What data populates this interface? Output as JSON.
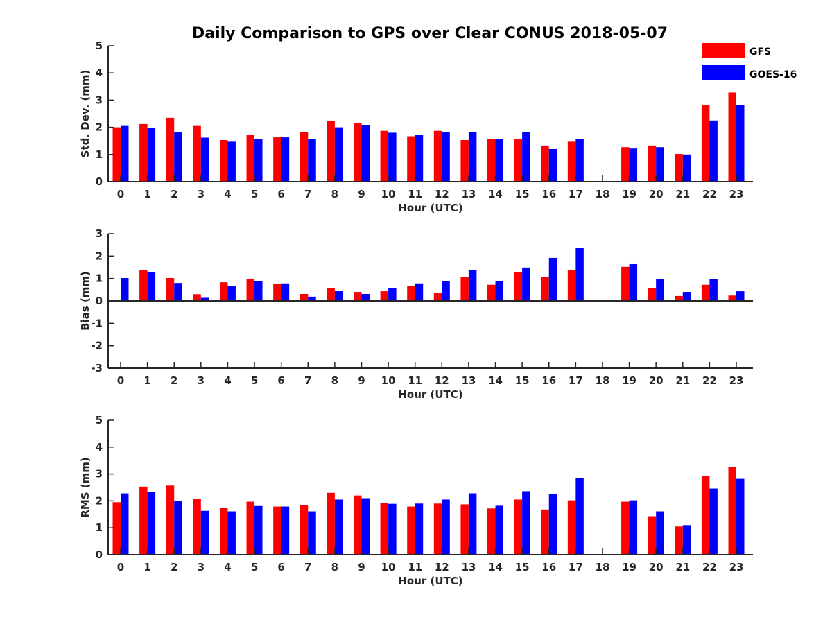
{
  "chart_data": {
    "title": "Daily Comparison to GPS over Clear CONUS 2018-05-07",
    "legend": [
      {
        "name": "GFS",
        "color": "#ff0000"
      },
      {
        "name": "GOES-16",
        "color": "#0000ff"
      }
    ],
    "legend_position": "top-right",
    "categories": [
      "0",
      "1",
      "2",
      "3",
      "4",
      "5",
      "6",
      "7",
      "8",
      "9",
      "10",
      "11",
      "12",
      "13",
      "14",
      "15",
      "16",
      "17",
      "18",
      "19",
      "20",
      "21",
      "22",
      "23"
    ],
    "panels": [
      {
        "type": "bar",
        "xlabel": "Hour (UTC)",
        "ylabel": "Std. Dev. (mm)",
        "ylim": [
          0,
          5
        ],
        "yticks": [
          "0",
          "1",
          "2",
          "3",
          "4",
          "5"
        ],
        "series": [
          {
            "name": "GFS",
            "values": [
              2.0,
              2.12,
              2.35,
              2.05,
              1.53,
              1.72,
              1.63,
              1.82,
              2.22,
              2.15,
              1.87,
              1.67,
              1.87,
              1.53,
              1.57,
              1.58,
              1.33,
              1.47,
              null,
              1.27,
              1.33,
              1.02,
              2.82,
              3.28
            ]
          },
          {
            "name": "GOES-16",
            "values": [
              2.05,
              1.97,
              1.83,
              1.62,
              1.47,
              1.58,
              1.63,
              1.58,
              2.0,
              2.07,
              1.8,
              1.72,
              1.83,
              1.82,
              1.58,
              1.83,
              1.2,
              1.58,
              null,
              1.22,
              1.27,
              1.0,
              2.25,
              2.82
            ]
          }
        ]
      },
      {
        "type": "bar",
        "xlabel": "Hour (UTC)",
        "ylabel": "Bias (mm)",
        "ylim": [
          -3,
          3
        ],
        "yticks": [
          "-3",
          "-2",
          "-1",
          "0",
          "1",
          "2",
          "3"
        ],
        "series": [
          {
            "name": "GFS",
            "values": [
              0.0,
              1.37,
              1.02,
              0.3,
              0.83,
              0.99,
              0.75,
              0.31,
              0.56,
              0.4,
              0.43,
              0.68,
              0.36,
              1.08,
              0.72,
              1.3,
              1.08,
              1.39,
              null,
              1.52,
              0.56,
              0.22,
              0.72,
              0.24
            ]
          },
          {
            "name": "GOES-16",
            "values": [
              1.02,
              1.27,
              0.8,
              0.14,
              0.68,
              0.89,
              0.78,
              0.19,
              0.44,
              0.31,
              0.56,
              0.78,
              0.87,
              1.39,
              0.87,
              1.49,
              1.92,
              2.35,
              null,
              1.64,
              0.99,
              0.4,
              0.99,
              0.43
            ]
          }
        ]
      },
      {
        "type": "bar",
        "xlabel": "Hour (UTC)",
        "ylabel": "RMS (mm)",
        "ylim": [
          0,
          5
        ],
        "yticks": [
          "0",
          "1",
          "2",
          "3",
          "4",
          "5"
        ],
        "series": [
          {
            "name": "GFS",
            "values": [
              1.95,
              2.53,
              2.57,
              2.07,
              1.73,
              1.97,
              1.79,
              1.85,
              2.3,
              2.2,
              1.92,
              1.79,
              1.9,
              1.87,
              1.72,
              2.05,
              1.68,
              2.02,
              null,
              1.97,
              1.43,
              1.05,
              2.92,
              3.27
            ]
          },
          {
            "name": "GOES-16",
            "values": [
              2.28,
              2.33,
              2.0,
              1.63,
              1.61,
              1.81,
              1.79,
              1.61,
              2.05,
              2.1,
              1.89,
              1.9,
              2.05,
              2.28,
              1.82,
              2.36,
              2.25,
              2.86,
              null,
              2.02,
              1.61,
              1.1,
              2.46,
              2.82
            ]
          }
        ]
      }
    ]
  }
}
